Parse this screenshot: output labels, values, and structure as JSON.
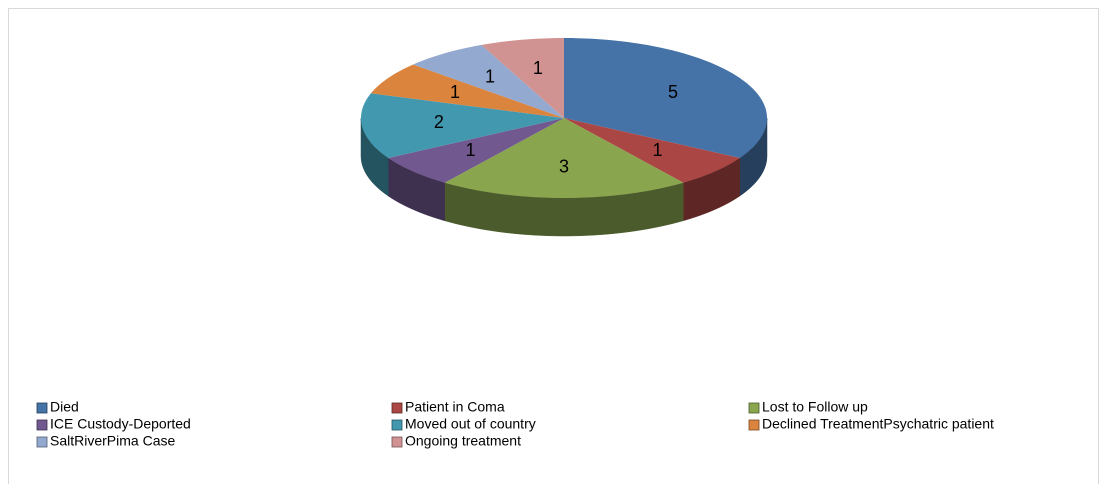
{
  "chart_data": {
    "type": "pie",
    "categories": [
      "Died",
      "Patient in Coma",
      "Lost to Follow up",
      "ICE Custody-Deported",
      "Moved out of country",
      "Declined TreatmentPsychatric patient",
      "SaltRiverPima Case",
      "Ongoing treatment"
    ],
    "values": [
      5,
      1,
      3,
      1,
      2,
      1,
      1,
      1
    ],
    "colors": [
      "#4572a7",
      "#aa4643",
      "#89a54e",
      "#71588f",
      "#4198af",
      "#db843d",
      "#93a9cf",
      "#d19392"
    ],
    "legend": "bottom"
  }
}
